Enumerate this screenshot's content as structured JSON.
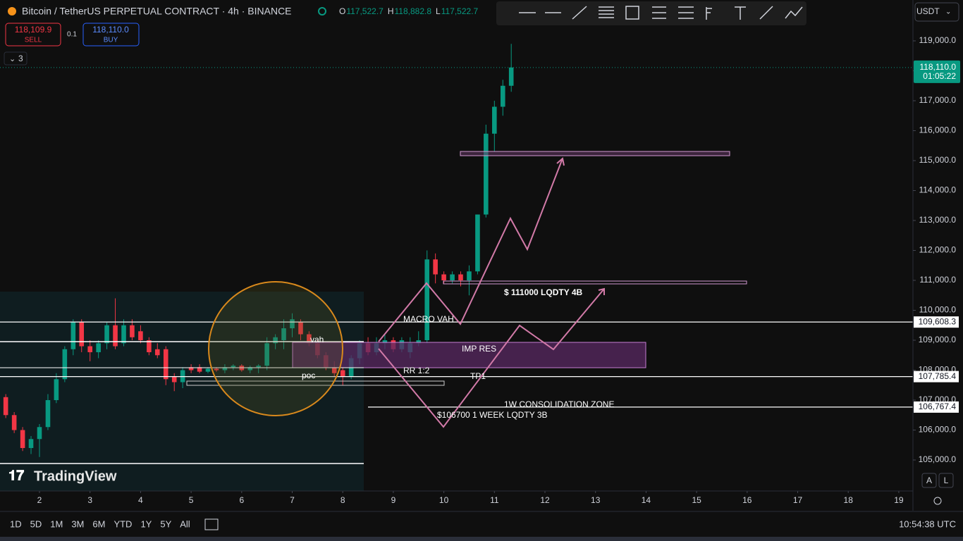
{
  "header": {
    "symbol": "Bitcoin / TetherUS PERPETUAL CONTRACT · 4h · BINANCE",
    "ohlc": [
      {
        "key": "O",
        "value": "117,522.7"
      },
      {
        "key": "H",
        "value": "118,882.8"
      },
      {
        "key": "L",
        "value": "117,522.7"
      }
    ],
    "sell_price": "118,109.9",
    "sell_label": "SELL",
    "spread": "0.1",
    "buy_price": "118,110.0",
    "buy_label": "BUY",
    "indicators_count": "3",
    "currency": "USDT"
  },
  "chart_data": {
    "type": "candlestick",
    "x": [
      1.333,
      1.5,
      1.667,
      1.833,
      2,
      2.167,
      2.333,
      2.5,
      2.667,
      2.833,
      3,
      3.167,
      3.333,
      3.5,
      3.667,
      3.833,
      4,
      4.167,
      4.333,
      4.5,
      4.667,
      4.833,
      5,
      5.167,
      5.333,
      5.5,
      5.667,
      5.833,
      6,
      6.167,
      6.333,
      6.5,
      6.667,
      6.833,
      7,
      7.167,
      7.333,
      7.5,
      7.667,
      7.833,
      8,
      8.167,
      8.333,
      8.5,
      8.667,
      8.833,
      9,
      9.167,
      9.333,
      9.5,
      9.667,
      9.833,
      10,
      10.167,
      10.333,
      10.5,
      10.667,
      10.833,
      11,
      11.167,
      11.333
    ],
    "open": [
      107100,
      106500,
      106000,
      105400,
      105700,
      106100,
      107000,
      107700,
      108700,
      109600,
      108800,
      108600,
      108900,
      109500,
      108900,
      109500,
      109300,
      109000,
      108700,
      108700,
      107800,
      107600,
      108100,
      108100,
      107950,
      108050,
      108000,
      108100,
      108150,
      108000,
      108100,
      108150,
      108900,
      109000,
      109400,
      109600,
      109200,
      108900,
      108500,
      108100,
      108000,
      107800,
      108400,
      108900,
      108600,
      108900,
      109000,
      108700,
      108600,
      108900,
      109000,
      111700,
      111200,
      111000,
      111200,
      111000,
      111300,
      113200,
      115900,
      116800,
      117500
    ],
    "high": [
      107200,
      106600,
      106100,
      105800,
      106200,
      107200,
      107900,
      108800,
      109700,
      109700,
      109000,
      109000,
      109600,
      110400,
      109700,
      109700,
      109500,
      109100,
      108900,
      108800,
      107900,
      108100,
      108200,
      108200,
      108100,
      108100,
      108200,
      108200,
      108200,
      108150,
      108200,
      109100,
      109200,
      109700,
      109900,
      109700,
      109300,
      109000,
      108600,
      108300,
      108100,
      108500,
      109000,
      109100,
      109100,
      109200,
      109100,
      109100,
      109100,
      109300,
      112000,
      111900,
      111300,
      111300,
      111300,
      111500,
      113200,
      116200,
      117000,
      117700,
      118900
    ],
    "low": [
      106400,
      105900,
      105300,
      105200,
      105100,
      106000,
      106900,
      107600,
      108500,
      108600,
      108300,
      108400,
      108700,
      108700,
      108800,
      109000,
      108900,
      108500,
      108400,
      107500,
      107300,
      107400,
      107900,
      107900,
      107900,
      107950,
      107900,
      108000,
      107950,
      107900,
      107900,
      108000,
      108700,
      108700,
      109100,
      109000,
      108800,
      108400,
      108000,
      107800,
      107500,
      107700,
      108200,
      108500,
      108500,
      108700,
      108600,
      108600,
      108400,
      108800,
      108900,
      110900,
      110900,
      110900,
      110800,
      110500,
      111200,
      113100,
      115300,
      116500,
      117300
    ],
    "close": [
      106500,
      106000,
      105400,
      105700,
      106100,
      107000,
      107700,
      108700,
      109600,
      108800,
      108600,
      108900,
      109500,
      108800,
      109500,
      109100,
      109000,
      108600,
      108500,
      107700,
      107600,
      108000,
      108000,
      107950,
      108050,
      108000,
      108100,
      108150,
      108000,
      108100,
      108150,
      108900,
      109100,
      109400,
      109700,
      109200,
      108900,
      108500,
      108100,
      107900,
      107800,
      108400,
      108900,
      108600,
      108900,
      109000,
      108700,
      109000,
      108900,
      109000,
      111700,
      111200,
      111000,
      111200,
      111000,
      111300,
      113200,
      115900,
      116800,
      117500,
      118110
    ],
    "up_color": "#089981",
    "down_color": "#f23645",
    "xlim": [
      1.219,
      19.28
    ],
    "xticks": [
      2,
      3,
      4,
      5,
      6,
      7,
      8,
      9,
      10,
      11,
      12,
      13,
      14,
      15,
      16,
      17,
      18,
      19
    ],
    "ylim": [
      103965,
      120365
    ],
    "yticks": [
      {
        "value": 105000,
        "label": "105,000.0"
      },
      {
        "value": 106000,
        "label": "106,000.0"
      },
      {
        "value": 107000,
        "label": "107,000.0"
      },
      {
        "value": 108000,
        "label": "108,000.0"
      },
      {
        "value": 109000,
        "label": "109,000.0"
      },
      {
        "value": 110000,
        "label": "110,000.0"
      },
      {
        "value": 111000,
        "label": "111,000.0"
      },
      {
        "value": 112000,
        "label": "112,000.0"
      },
      {
        "value": 113000,
        "label": "113,000.0"
      },
      {
        "value": 114000,
        "label": "114,000.0"
      },
      {
        "value": 115000,
        "label": "115,000.0"
      },
      {
        "value": 116000,
        "label": "116,000.0"
      },
      {
        "value": 117000,
        "label": "117,000.0"
      },
      {
        "value": 118000,
        "label": "118,000.0"
      },
      {
        "value": 119000,
        "label": "119,000.0"
      }
    ],
    "last_price": {
      "value": 118110,
      "label": "118,110.0"
    },
    "countdown": "01:05:22",
    "levels": [
      {
        "value": 109608.3,
        "label": "109,608.3"
      },
      {
        "value": 107785.4,
        "label": "107,785.4"
      },
      {
        "value": 106767.4,
        "label": "106,767.4"
      }
    ],
    "annotations": [
      "MACRO VAH",
      "vah",
      "IMP RES",
      "RR 1:2",
      "poc",
      "TP1",
      "$ 111000 LQDTY 4B",
      "1W CONSOLIDATION ZONE",
      "$106700 1 WEEK LQDTY 3B"
    ]
  },
  "footer": {
    "ranges": [
      "1D",
      "5D",
      "1M",
      "3M",
      "6M",
      "YTD",
      "1Y",
      "5Y",
      "All"
    ],
    "time": "10:54:38 UTC",
    "scale_buttons": [
      "A",
      "L"
    ],
    "logo": "TradingView"
  }
}
